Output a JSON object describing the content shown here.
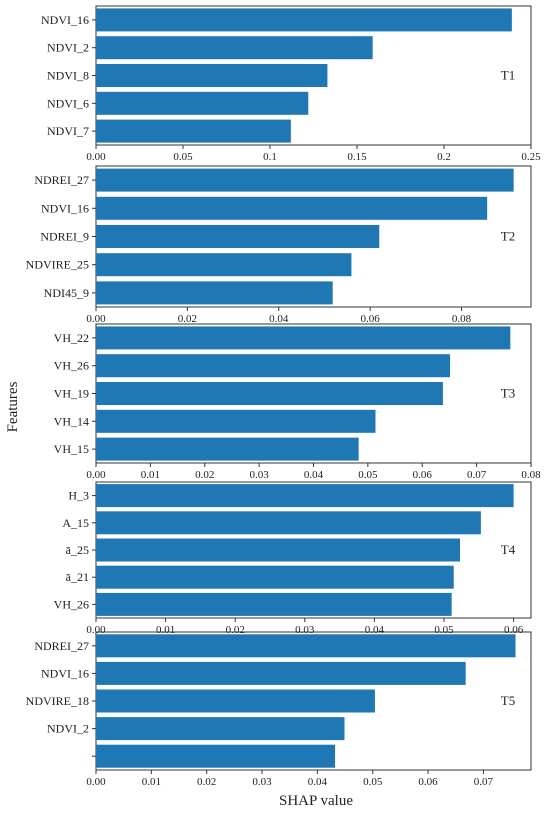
{
  "colors": {
    "bar": "#1f77b4",
    "axis": "#333333",
    "text": "#222222",
    "background": "#ffffff"
  },
  "shared_labels": {
    "ylabel": "Features",
    "xlabel": "SHAP value"
  },
  "chart_data": [
    {
      "type": "bar",
      "orientation": "horizontal",
      "annotation": "T1",
      "categories": [
        "NDVI_16",
        "NDVI_2",
        "NDVI_8",
        "NDVI_6",
        "NDVI_7"
      ],
      "values": [
        0.239,
        0.159,
        0.133,
        0.122,
        0.112
      ],
      "xlim": [
        0,
        0.25
      ],
      "xticks": [
        0,
        0.05,
        0.1,
        0.15,
        0.2,
        0.25
      ],
      "xtick_labels": [
        "0.00",
        "0.05",
        "0.1",
        "0.15",
        "0.2",
        "0.25"
      ],
      "grid": false
    },
    {
      "type": "bar",
      "orientation": "horizontal",
      "annotation": "T2",
      "categories": [
        "NDREI_27",
        "NDVI_16",
        "NDREI_9",
        "NDVIRE_25",
        "NDI45_9"
      ],
      "values": [
        0.0914,
        0.0856,
        0.062,
        0.0559,
        0.0518
      ],
      "xlim": [
        0,
        0.0952
      ],
      "xticks": [
        0,
        0.02,
        0.04,
        0.06,
        0.08
      ],
      "xtick_labels": [
        "0.00",
        "0.02",
        "0.04",
        "0.06",
        "0.08"
      ],
      "grid": false
    },
    {
      "type": "bar",
      "orientation": "horizontal",
      "annotation": "T3",
      "categories": [
        "VH_22",
        "VH_26",
        "VH_19",
        "VH_14",
        "VH_15"
      ],
      "values": [
        0.0762,
        0.0651,
        0.0638,
        0.0514,
        0.0483
      ],
      "xlim": [
        0,
        0.08
      ],
      "xticks": [
        0,
        0.01,
        0.02,
        0.03,
        0.04,
        0.05,
        0.06,
        0.07,
        0.08
      ],
      "xtick_labels": [
        "0.00",
        "0.01",
        "0.02",
        "0.03",
        "0.04",
        "0.05",
        "0.06",
        "0.07",
        "0.08"
      ],
      "grid": false
    },
    {
      "type": "bar",
      "orientation": "horizontal",
      "annotation": "T4",
      "categories": [
        "H_3",
        "A_15",
        "ā_25",
        "ā_21",
        "VH_26"
      ],
      "values": [
        0.06,
        0.0553,
        0.0523,
        0.0514,
        0.0511
      ],
      "xlim": [
        0,
        0.0625
      ],
      "xticks": [
        0,
        0.01,
        0.02,
        0.03,
        0.04,
        0.05,
        0.06
      ],
      "xtick_labels": [
        "0.00",
        "0.01",
        "0.02",
        "0.03",
        "0.04",
        "0.05",
        "0.06"
      ],
      "grid": false
    },
    {
      "type": "bar",
      "orientation": "horizontal",
      "annotation": "T5",
      "categories": [
        "NDREI_27",
        "NDVI_16",
        "NDVIRE_18",
        "NDVI_2",
        ""
      ],
      "values": [
        0.0758,
        0.0668,
        0.0504,
        0.0449,
        0.0432
      ],
      "xlim": [
        0,
        0.0786
      ],
      "xticks": [
        0,
        0.01,
        0.02,
        0.03,
        0.04,
        0.05,
        0.06,
        0.07
      ],
      "xtick_labels": [
        "0.00",
        "0.01",
        "0.02",
        "0.03",
        "0.04",
        "0.05",
        "0.06",
        "0.07"
      ],
      "grid": false
    }
  ]
}
